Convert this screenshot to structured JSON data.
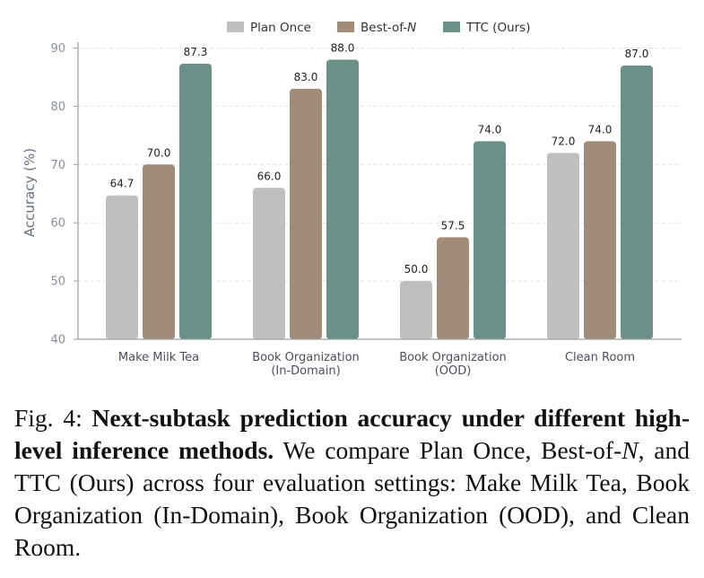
{
  "chart_data": {
    "type": "bar",
    "categories": [
      [
        "Make Milk Tea"
      ],
      [
        "Book Organization",
        "(In-Domain)"
      ],
      [
        "Book Organization",
        "(OOD)"
      ],
      [
        "Clean Room"
      ]
    ],
    "series": [
      {
        "name": "Plan Once",
        "values": [
          64.7,
          66.0,
          50.0,
          72.0
        ],
        "color": "#bfbfbf"
      },
      {
        "name": "Best-of-N",
        "values": [
          70.0,
          83.0,
          57.5,
          74.0
        ],
        "color": "#a08c78"
      },
      {
        "name": "TTC (Ours)",
        "values": [
          87.3,
          88.0,
          74.0,
          87.0
        ],
        "color": "#6a9088"
      }
    ],
    "value_labels": [
      [
        "64.7",
        "66.0",
        "50.0",
        "72.0"
      ],
      [
        "70.0",
        "83.0",
        "57.5",
        "74.0"
      ],
      [
        "87.3",
        "88.0",
        "74.0",
        "87.0"
      ]
    ],
    "ylabel": "Accuracy (%)",
    "ylim": [
      40,
      91
    ],
    "yticks": [
      40,
      50,
      60,
      70,
      80,
      90
    ],
    "grid": true,
    "legend_position": "top-center"
  },
  "caption": {
    "prefix": "Fig. 4: ",
    "bold": "Next-subtask prediction accuracy under different high-level inference methods.",
    "text_a": " We compare Plan Once, Best-of-",
    "text_n": "N",
    "text_b": ", and TTC (Ours) across four evaluation settings: Make Milk Tea, Book Organization (In-Domain), Book Organization (OOD), and Clean Room."
  }
}
